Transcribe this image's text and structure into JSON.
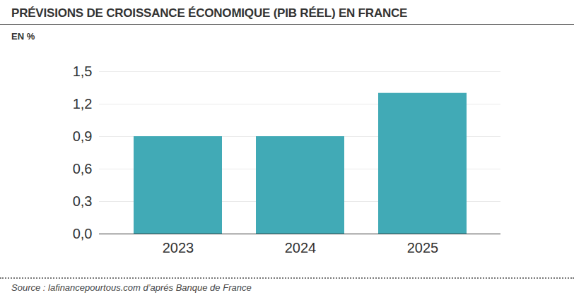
{
  "chart_data": {
    "type": "bar",
    "title": "PRÉVISIONS DE CROISSANCE ÉCONOMIQUE (PIB RÉEL) EN FRANCE",
    "subtitle": "EN %",
    "caption": "Source : lafinancepourtous.com d’aprés Banque de France",
    "categories": [
      "2023",
      "2024",
      "2025"
    ],
    "values": [
      0.9,
      0.9,
      1.3
    ],
    "color": "#41aab6",
    "ylim": [
      0,
      1.5
    ],
    "yticks": [
      {
        "value": 0,
        "label": "0,0"
      },
      {
        "value": 0.3,
        "label": "0,3"
      },
      {
        "value": 0.6,
        "label": "0,6"
      },
      {
        "value": 0.9,
        "label": "0,9"
      },
      {
        "value": 1.2,
        "label": "1,2"
      },
      {
        "value": 1.5,
        "label": "1,5"
      }
    ],
    "grid": true
  }
}
